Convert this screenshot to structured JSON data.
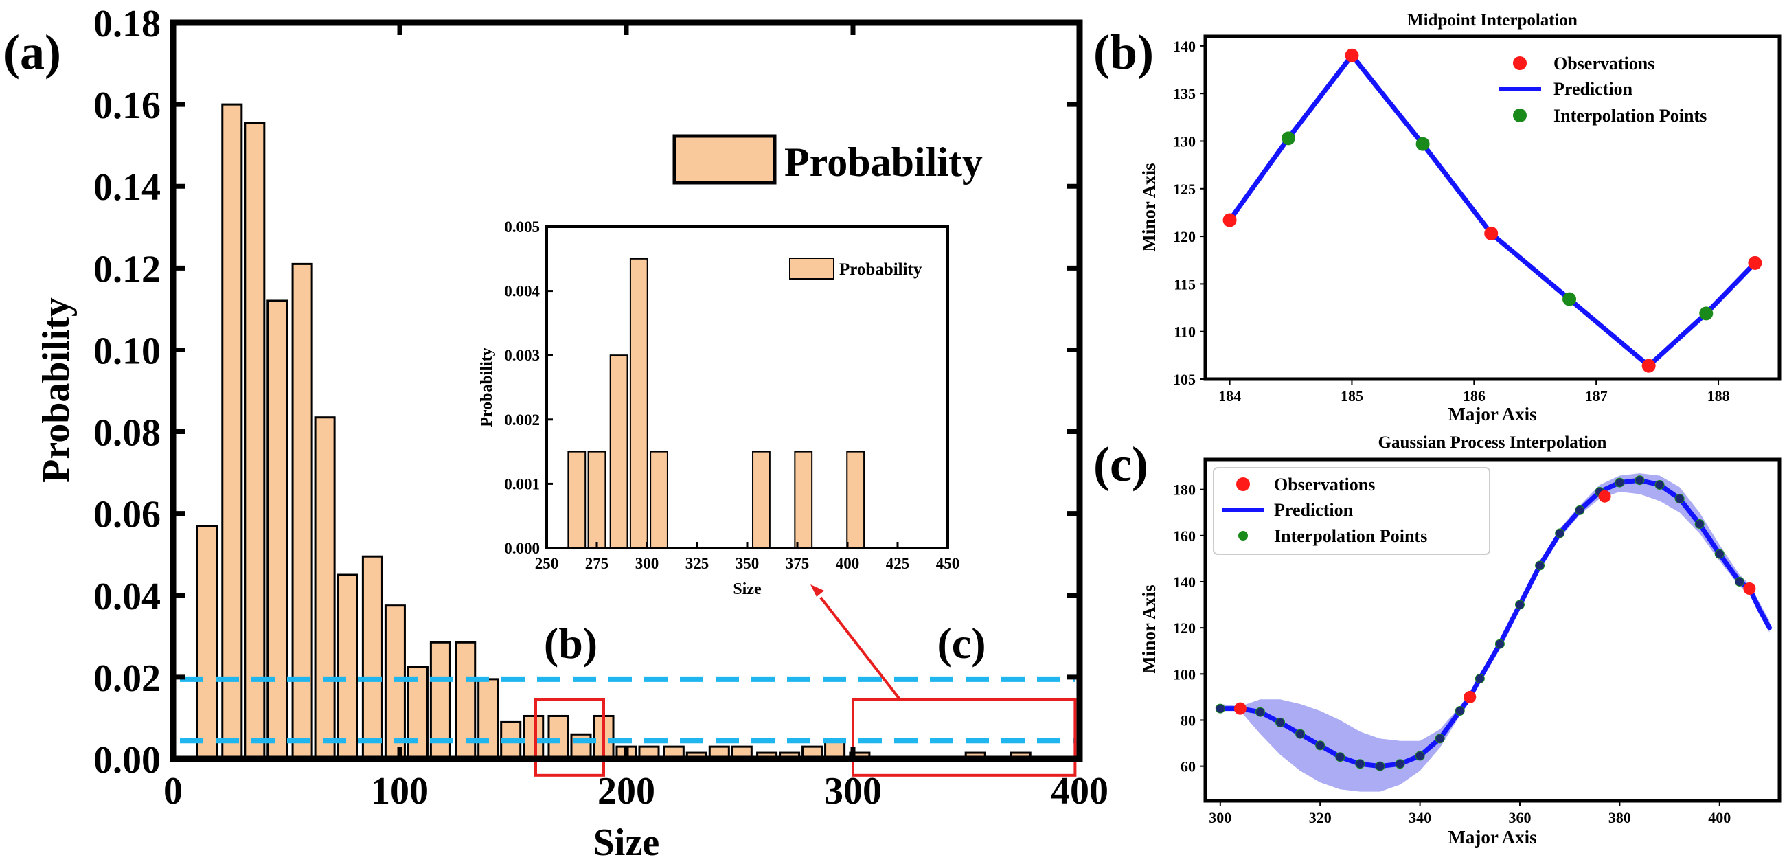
{
  "chart_data": [
    {
      "id": "a",
      "type": "bar",
      "panel_label": "(a)",
      "xlabel": "Size",
      "ylabel": "Probability",
      "xlim": [
        0,
        400
      ],
      "ylim": [
        0,
        0.18
      ],
      "xticks": [
        "0",
        "100",
        "200",
        "300",
        "400"
      ],
      "yticks": [
        "0.00",
        "0.02",
        "0.04",
        "0.06",
        "0.08",
        "0.10",
        "0.12",
        "0.14",
        "0.16",
        "0.18"
      ],
      "legend": "Probability",
      "bar_color": "#f9c89b",
      "bar_width": 8.5,
      "x": [
        15,
        26,
        36,
        46,
        57,
        67,
        77,
        88,
        98,
        108,
        118,
        129,
        139,
        149,
        159,
        170,
        180,
        190,
        200,
        210,
        221,
        231,
        241,
        251,
        262,
        272,
        282,
        292,
        303,
        313,
        323,
        333,
        344,
        354,
        364,
        374
      ],
      "values": [
        0.057,
        0.16,
        0.1555,
        0.112,
        0.121,
        0.0835,
        0.045,
        0.0495,
        0.0375,
        0.0225,
        0.0285,
        0.0285,
        0.0195,
        0.009,
        0.0105,
        0.0105,
        0.006,
        0.0105,
        0.003,
        0.003,
        0.003,
        0.0015,
        0.003,
        0.003,
        0.0015,
        0.0015,
        0.003,
        0.0045,
        0.0015,
        0,
        0,
        0,
        0,
        0.0015,
        0,
        0.0015
      ],
      "reference_lines": [
        0.0195,
        0.0045
      ],
      "reference_line_color": "#1fb5ee",
      "highlight_boxes": [
        {
          "label": "(b)",
          "x_range": [
            160,
            190
          ],
          "y_range": [
            -0.004,
            0.0145
          ]
        },
        {
          "label": "(c)",
          "x_range": [
            300,
            398
          ],
          "y_range": [
            -0.004,
            0.0145
          ]
        }
      ],
      "highlight_color": "#e81f1f"
    },
    {
      "id": "a-inset",
      "type": "bar",
      "xlabel": "Size",
      "ylabel": "Probability",
      "xlim": [
        250,
        450
      ],
      "ylim": [
        0,
        0.005
      ],
      "xticks": [
        "250",
        "275",
        "300",
        "325",
        "350",
        "375",
        "400",
        "425",
        "450"
      ],
      "yticks": [
        "0.000",
        "0.001",
        "0.002",
        "0.003",
        "0.004",
        "0.005"
      ],
      "legend": "Probability",
      "bar_width": 8.5,
      "x": [
        265,
        275,
        286,
        296,
        306,
        357,
        378,
        404
      ],
      "values": [
        0.0015,
        0.0015,
        0.003,
        0.0045,
        0.0015,
        0.0015,
        0.0015,
        0.0015
      ]
    },
    {
      "id": "b",
      "type": "line",
      "panel_label": "(b)",
      "title": "Midpoint Interpolation",
      "xlabel": "Major Axis",
      "ylabel": "Minor Axis",
      "xlim": [
        183.8,
        188.5
      ],
      "ylim": [
        105,
        141
      ],
      "xticks": [
        "184",
        "185",
        "186",
        "187",
        "188"
      ],
      "yticks": [
        "105",
        "110",
        "115",
        "120",
        "125",
        "130",
        "135",
        "140"
      ],
      "series": [
        {
          "name": "Observations",
          "style": "point",
          "color": "#ff1a1a",
          "x": [
            184.0,
            185.0,
            186.14,
            187.43,
            188.3
          ],
          "y": [
            121.7,
            139.0,
            120.3,
            106.4,
            117.2
          ]
        },
        {
          "name": "Prediction",
          "style": "line",
          "color": "#1414ff",
          "x": [
            184.0,
            184.48,
            185.0,
            185.58,
            186.14,
            186.78,
            187.43,
            187.9,
            188.3
          ],
          "y": [
            121.7,
            130.3,
            139.0,
            129.7,
            120.3,
            113.4,
            106.4,
            111.9,
            117.2
          ]
        },
        {
          "name": "Interpolation Points",
          "style": "point",
          "color": "#1a8a1a",
          "x": [
            184.48,
            185.58,
            186.78,
            187.9
          ],
          "y": [
            130.3,
            129.7,
            113.4,
            111.9
          ]
        }
      ]
    },
    {
      "id": "c",
      "type": "line",
      "panel_label": "(c)",
      "title": "Gaussian Process Interpolation",
      "xlabel": "Major Axis",
      "ylabel": "Minor Axis",
      "xlim": [
        297,
        412
      ],
      "ylim": [
        45,
        193
      ],
      "xticks": [
        "300",
        "320",
        "340",
        "360",
        "380",
        "400"
      ],
      "yticks": [
        "60",
        "80",
        "100",
        "120",
        "140",
        "160",
        "180"
      ],
      "band_color": "#8080ee",
      "series": [
        {
          "name": "Observations",
          "style": "point",
          "color": "#ff1a1a",
          "x": [
            304,
            350,
            377,
            406
          ],
          "y": [
            85,
            90,
            177,
            137
          ]
        },
        {
          "name": "Prediction",
          "style": "line",
          "color": "#1414ff",
          "x": [
            300,
            304,
            308,
            312,
            316,
            320,
            324,
            328,
            332,
            336,
            340,
            344,
            348,
            350,
            352,
            356,
            360,
            364,
            368,
            372,
            376,
            380,
            384,
            388,
            392,
            396,
            400,
            404,
            406,
            408,
            410
          ],
          "y": [
            85,
            85,
            83.5,
            79,
            74,
            69,
            64,
            61,
            60,
            61,
            64.5,
            72,
            84,
            90,
            98,
            113,
            130,
            147,
            161,
            171,
            179,
            183,
            184,
            182,
            176,
            165,
            152,
            140,
            137,
            128,
            120
          ],
          "lower": [
            85,
            84,
            74,
            65,
            58,
            53,
            50,
            49,
            49,
            52,
            58,
            68,
            82,
            88,
            96,
            111,
            128,
            145,
            159,
            169,
            176,
            179,
            178,
            175,
            170,
            161,
            149,
            138,
            135,
            126,
            118
          ],
          "upper": [
            87,
            86,
            89,
            89,
            87,
            84,
            80,
            75,
            72,
            71,
            71,
            76,
            86,
            92,
            100,
            115,
            132,
            149,
            163,
            173,
            182,
            186,
            187,
            186,
            181,
            170,
            156,
            143,
            139,
            131,
            123
          ]
        },
        {
          "name": "Interpolation Points",
          "style": "point",
          "color": "#1a8a1a",
          "x": [
            300,
            304,
            308,
            312,
            316,
            320,
            324,
            328,
            332,
            336,
            340,
            344,
            348,
            352,
            356,
            360,
            364,
            368,
            372,
            376,
            380,
            384,
            388,
            392,
            396,
            400,
            404
          ],
          "y": [
            85,
            85,
            83.5,
            79,
            74,
            69,
            64,
            61,
            60,
            61,
            64.5,
            72,
            84,
            98,
            113,
            130,
            147,
            161,
            171,
            179,
            183,
            184,
            182,
            176,
            165,
            152,
            140
          ]
        }
      ]
    }
  ]
}
